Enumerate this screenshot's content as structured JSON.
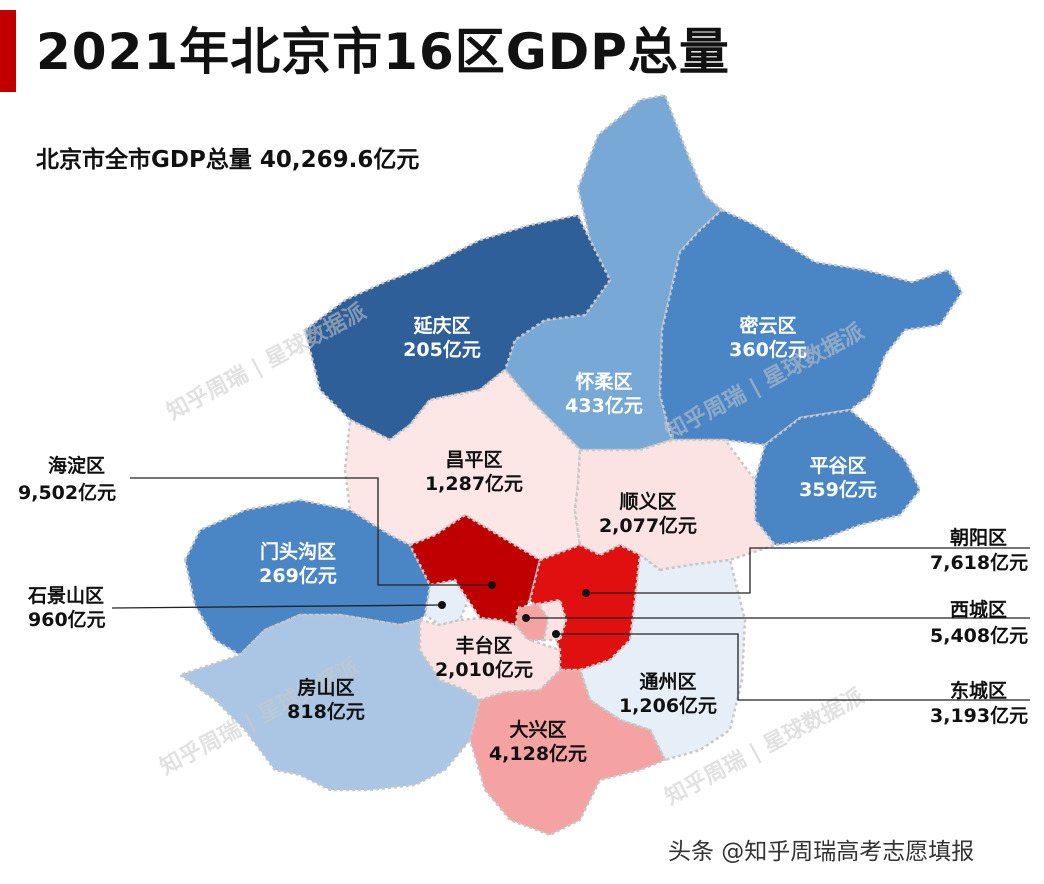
{
  "title": "2021年北京市16区GDP总量",
  "subtitle": "北京市全市GDP总量 40,269.6亿元",
  "credit": "头条 @知乎周瑞高考志愿填报",
  "watermark": "知乎周瑞 | 星球数据派",
  "colors": {
    "accent": "#c00000",
    "darkest_blue": "#2f5f98",
    "mid_blue": "#4a86c5",
    "light_blue": "#78a8d6",
    "pale_blue": "#aac6e4",
    "ice": "#e6eef7",
    "pale_pink": "#fde6e6",
    "pink": "#fbe3e3",
    "salmon": "#f4a2a2",
    "red": "#e01010",
    "dark_red": "#c00000"
  },
  "districts": [
    {
      "id": "yanqing",
      "name": "延庆区",
      "gdp": "205亿元"
    },
    {
      "id": "huairou",
      "name": "怀柔区",
      "gdp": "433亿元"
    },
    {
      "id": "miyun",
      "name": "密云区",
      "gdp": "360亿元"
    },
    {
      "id": "pinggu",
      "name": "平谷区",
      "gdp": "359亿元"
    },
    {
      "id": "changping",
      "name": "昌平区",
      "gdp": "1,287亿元"
    },
    {
      "id": "shunyi",
      "name": "顺义区",
      "gdp": "2,077亿元"
    },
    {
      "id": "mentougou",
      "name": "门头沟区",
      "gdp": "269亿元"
    },
    {
      "id": "haidian",
      "name": "海淀区",
      "gdp": "9,502亿元"
    },
    {
      "id": "chaoyang",
      "name": "朝阳区",
      "gdp": "7,618亿元"
    },
    {
      "id": "shijingshan",
      "name": "石景山区",
      "gdp": "960亿元"
    },
    {
      "id": "xicheng",
      "name": "西城区",
      "gdp": "5,408亿元"
    },
    {
      "id": "dongcheng",
      "name": "东城区",
      "gdp": "3,193亿元"
    },
    {
      "id": "fengtai",
      "name": "丰台区",
      "gdp": "2,010亿元"
    },
    {
      "id": "tongzhou",
      "name": "通州区",
      "gdp": "1,206亿元"
    },
    {
      "id": "fangshan",
      "name": "房山区",
      "gdp": "818亿元"
    },
    {
      "id": "daxing",
      "name": "大兴区",
      "gdp": "4,128亿元"
    }
  ]
}
